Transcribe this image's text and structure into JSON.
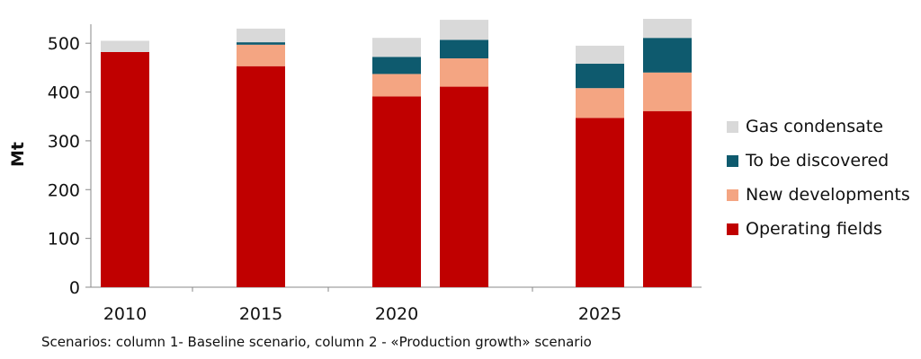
{
  "chart_data": {
    "type": "bar",
    "stacked": true,
    "ylabel": "Mt",
    "ylim": [
      0,
      550
    ],
    "yticks": [
      0,
      100,
      200,
      300,
      400,
      500
    ],
    "x_tick_labels": [
      "2010",
      "2015",
      "2020",
      "2025"
    ],
    "bars": [
      {
        "group": "2010",
        "column": 1,
        "values": [
          482,
          0,
          0,
          23
        ]
      },
      {
        "group": "2015",
        "column": 1,
        "values": [
          453,
          44,
          5,
          28
        ]
      },
      {
        "group": "2020",
        "column": 1,
        "values": [
          391,
          46,
          35,
          39
        ]
      },
      {
        "group": "2020",
        "column": 2,
        "values": [
          411,
          58,
          38,
          41
        ]
      },
      {
        "group": "2025",
        "column": 1,
        "values": [
          347,
          61,
          50,
          37
        ]
      },
      {
        "group": "2025",
        "column": 2,
        "values": [
          361,
          79,
          71,
          39
        ]
      }
    ],
    "series": [
      {
        "name": "Operating fields",
        "color": "#c00000"
      },
      {
        "name": "New developments",
        "color": "#f4a582"
      },
      {
        "name": "To be discovered",
        "color": "#0e5a6e"
      },
      {
        "name": "Gas condensate",
        "color": "#d9d9d9"
      }
    ],
    "legend_order": [
      "Gas condensate",
      "To be discovered",
      "New developments",
      "Operating fields"
    ],
    "legend_position": "right",
    "grid": false,
    "note": "Scenarios: column 1- Baseline scenario, column 2 - «Production growth» scenario"
  }
}
